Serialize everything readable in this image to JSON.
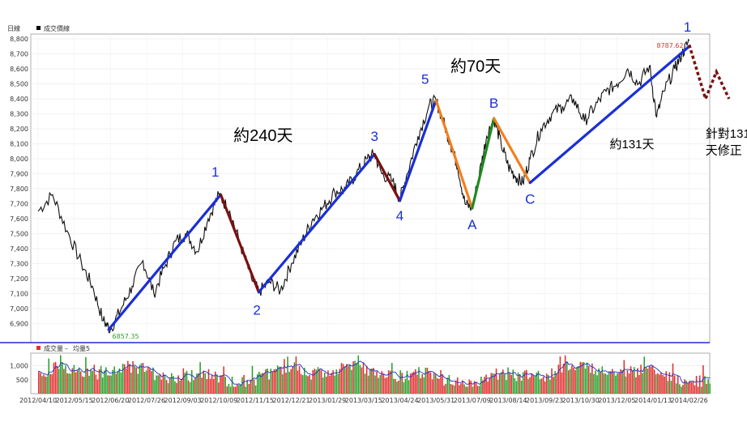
{
  "chart_data": [
    {
      "type": "line",
      "panel_title": "日線",
      "legend": "成交價線",
      "ylim": [
        6800,
        8800
      ],
      "yticks": [
        "6,900",
        "7,000",
        "7,100",
        "7,200",
        "7,300",
        "7,400",
        "7,500",
        "7,600",
        "7,700",
        "7,800",
        "7,900",
        "8,000",
        "8,100",
        "8,200",
        "8,300",
        "8,400",
        "8,500",
        "8,600",
        "8,700",
        "8,800"
      ],
      "x_dates": [
        "2012/04/10",
        "2012/05/15",
        "2012/06/20",
        "2012/07/26",
        "2012/09/03",
        "2012/10/09",
        "2012/11/15",
        "2012/12/21",
        "2013/01/29",
        "2013/03/15",
        "2013/04/24",
        "2013/05/31",
        "2013/07/09",
        "2013/08/14",
        "2013/09/23",
        "2013/10/30",
        "2013/12/05",
        "2014/01/13",
        "2014/02/26"
      ],
      "high_label": "8787.62",
      "low_label": "6857.35",
      "price_series": [
        {
          "x": 0,
          "y": 7650
        },
        {
          "x": 0.4,
          "y": 7760
        },
        {
          "x": 0.8,
          "y": 7520
        },
        {
          "x": 1.2,
          "y": 7300
        },
        {
          "x": 1.5,
          "y": 7150
        },
        {
          "x": 1.8,
          "y": 6920
        },
        {
          "x": 2.0,
          "y": 6860
        },
        {
          "x": 2.3,
          "y": 7000
        },
        {
          "x": 2.6,
          "y": 7150
        },
        {
          "x": 2.9,
          "y": 7320
        },
        {
          "x": 3.2,
          "y": 7100
        },
        {
          "x": 3.5,
          "y": 7280
        },
        {
          "x": 3.8,
          "y": 7450
        },
        {
          "x": 4.1,
          "y": 7500
        },
        {
          "x": 4.4,
          "y": 7380
        },
        {
          "x": 4.7,
          "y": 7600
        },
        {
          "x": 5.0,
          "y": 7760
        },
        {
          "x": 5.3,
          "y": 7650
        },
        {
          "x": 5.6,
          "y": 7420
        },
        {
          "x": 5.9,
          "y": 7200
        },
        {
          "x": 6.1,
          "y": 7110
        },
        {
          "x": 6.4,
          "y": 7180
        },
        {
          "x": 6.7,
          "y": 7120
        },
        {
          "x": 7.0,
          "y": 7300
        },
        {
          "x": 7.3,
          "y": 7450
        },
        {
          "x": 7.6,
          "y": 7600
        },
        {
          "x": 7.9,
          "y": 7680
        },
        {
          "x": 8.2,
          "y": 7780
        },
        {
          "x": 8.5,
          "y": 7800
        },
        {
          "x": 8.8,
          "y": 7900
        },
        {
          "x": 9.1,
          "y": 8000
        },
        {
          "x": 9.3,
          "y": 8030
        },
        {
          "x": 9.5,
          "y": 7900
        },
        {
          "x": 9.8,
          "y": 7850
        },
        {
          "x": 10.0,
          "y": 7730
        },
        {
          "x": 10.2,
          "y": 7900
        },
        {
          "x": 10.5,
          "y": 8150
        },
        {
          "x": 10.8,
          "y": 8350
        },
        {
          "x": 11.0,
          "y": 8390
        },
        {
          "x": 11.2,
          "y": 8250
        },
        {
          "x": 11.4,
          "y": 8100
        },
        {
          "x": 11.6,
          "y": 7950
        },
        {
          "x": 11.8,
          "y": 7700
        },
        {
          "x": 12.0,
          "y": 7670
        },
        {
          "x": 12.2,
          "y": 7900
        },
        {
          "x": 12.4,
          "y": 8150
        },
        {
          "x": 12.6,
          "y": 8270
        },
        {
          "x": 12.8,
          "y": 8100
        },
        {
          "x": 13.0,
          "y": 7950
        },
        {
          "x": 13.2,
          "y": 7880
        },
        {
          "x": 13.4,
          "y": 7840
        },
        {
          "x": 13.6,
          "y": 8000
        },
        {
          "x": 13.9,
          "y": 8200
        },
        {
          "x": 14.2,
          "y": 8300
        },
        {
          "x": 14.5,
          "y": 8350
        },
        {
          "x": 14.8,
          "y": 8400
        },
        {
          "x": 15.1,
          "y": 8250
        },
        {
          "x": 15.4,
          "y": 8350
        },
        {
          "x": 15.7,
          "y": 8450
        },
        {
          "x": 16.0,
          "y": 8500
        },
        {
          "x": 16.3,
          "y": 8600
        },
        {
          "x": 16.6,
          "y": 8500
        },
        {
          "x": 16.9,
          "y": 8620
        },
        {
          "x": 17.1,
          "y": 8280
        },
        {
          "x": 17.3,
          "y": 8450
        },
        {
          "x": 17.6,
          "y": 8600
        },
        {
          "x": 17.8,
          "y": 8700
        },
        {
          "x": 18.0,
          "y": 8788
        }
      ],
      "wave_lines": [
        {
          "name": "impulse-0-1",
          "color": "#1a2fd6",
          "from": {
            "x": 1.95,
            "y": 6860
          },
          "to": {
            "x": 5.05,
            "y": 7760
          }
        },
        {
          "name": "wave-1-2",
          "color": "#7a1010",
          "from": {
            "x": 5.05,
            "y": 7760
          },
          "to": {
            "x": 6.1,
            "y": 7110
          }
        },
        {
          "name": "wave-2-3",
          "color": "#1a2fd6",
          "from": {
            "x": 6.1,
            "y": 7110
          },
          "to": {
            "x": 9.3,
            "y": 8030
          }
        },
        {
          "name": "wave-3-4",
          "color": "#7a1010",
          "from": {
            "x": 9.3,
            "y": 8030
          },
          "to": {
            "x": 10.0,
            "y": 7720
          }
        },
        {
          "name": "wave-4-5",
          "color": "#1a2fd6",
          "from": {
            "x": 10.0,
            "y": 7720
          },
          "to": {
            "x": 11.0,
            "y": 8390
          }
        },
        {
          "name": "wave-5-A",
          "color": "#f08020",
          "from": {
            "x": 11.0,
            "y": 8390
          },
          "to": {
            "x": 12.0,
            "y": 7670
          }
        },
        {
          "name": "wave-A-B",
          "color": "#1f8a1f",
          "from": {
            "x": 12.0,
            "y": 7670
          },
          "to": {
            "x": 12.6,
            "y": 8270
          }
        },
        {
          "name": "wave-B-C",
          "color": "#f08020",
          "from": {
            "x": 12.6,
            "y": 8270
          },
          "to": {
            "x": 13.6,
            "y": 7840
          }
        },
        {
          "name": "wave-C-1",
          "color": "#1a2fd6",
          "from": {
            "x": 13.6,
            "y": 7840
          },
          "to": {
            "x": 18.0,
            "y": 8750
          }
        }
      ],
      "projection": {
        "color": "#7a1010",
        "points": [
          {
            "x": 18.0,
            "y": 8760
          },
          {
            "x": 18.45,
            "y": 8400
          },
          {
            "x": 18.75,
            "y": 8580
          },
          {
            "x": 19.1,
            "y": 8400
          }
        ]
      },
      "wave_labels": [
        {
          "text": "1",
          "x": 4.9,
          "y": 7880
        },
        {
          "text": "2",
          "x": 6.05,
          "y": 6960
        },
        {
          "text": "3",
          "x": 9.3,
          "y": 8120
        },
        {
          "text": "4",
          "x": 10.0,
          "y": 7590
        },
        {
          "text": "5",
          "x": 10.7,
          "y": 8500
        },
        {
          "text": "A",
          "x": 12.0,
          "y": 7530
        },
        {
          "text": "B",
          "x": 12.6,
          "y": 8340
        },
        {
          "text": "C",
          "x": 13.6,
          "y": 7700
        },
        {
          "text": "1",
          "x": 17.95,
          "y": 8850
        }
      ],
      "annotations": [
        {
          "text": "約240天",
          "x": 5.4,
          "y": 8120,
          "size": "large"
        },
        {
          "text": "約70天",
          "x": 11.4,
          "y": 8580,
          "size": "large"
        },
        {
          "text": "約131天",
          "x": 15.8,
          "y": 8070,
          "size": "small"
        },
        {
          "text": "針對131",
          "x": 18.45,
          "y": 8140,
          "size": "small"
        },
        {
          "text": "天修正",
          "x": 18.45,
          "y": 8030,
          "size": "small"
        }
      ]
    },
    {
      "type": "bar",
      "legend_volume": "成交量",
      "legend_ma": "均量5",
      "ylim": [
        0,
        1400
      ],
      "yticks": [
        "500",
        "1,000"
      ],
      "x_dates": [
        "2012/04/10",
        "2012/05/15",
        "2012/06/20",
        "2012/07/26",
        "2012/09/03",
        "2012/10/09",
        "2012/11/15",
        "2012/12/21",
        "2013/01/29",
        "2013/03/15",
        "2013/04/24",
        "2013/05/31",
        "2013/07/09",
        "2013/08/14",
        "2013/09/23",
        "2013/10/30",
        "2013/12/05",
        "2014/01/13",
        "2014/02/26"
      ],
      "colors": {
        "up": "#e03030",
        "down": "#2aa02a",
        "ma": "#2233cc"
      }
    }
  ]
}
